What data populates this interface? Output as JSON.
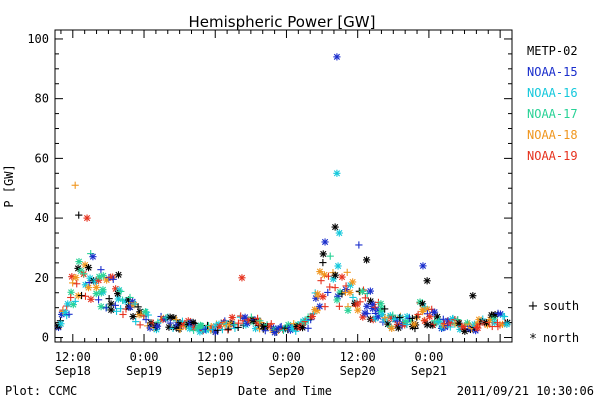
{
  "chart_data": {
    "type": "scatter",
    "title": "Hemispheric Power [GW]",
    "ylabel": "P [GW]",
    "xlabel": "Date and Time",
    "ylim": [
      0,
      100
    ],
    "y_ticks": [
      0,
      20,
      40,
      60,
      80,
      100
    ],
    "x_units": "hours since 2011-09-18 00:00 UT",
    "xlim": [
      9,
      86
    ],
    "x_ticks": [
      {
        "x": 12,
        "time": "12:00",
        "date": "Sep18"
      },
      {
        "x": 24,
        "time": "0:00",
        "date": "Sep19"
      },
      {
        "x": 36,
        "time": "12:00",
        "date": "Sep19"
      },
      {
        "x": 48,
        "time": "0:00",
        "date": "Sep20"
      },
      {
        "x": 60,
        "time": "12:00",
        "date": "Sep20"
      },
      {
        "x": 72,
        "time": "0:00",
        "date": "Sep21"
      }
    ],
    "legend_position": "right",
    "series": [
      {
        "name": "METP-02",
        "color": "#000000"
      },
      {
        "name": "NOAA-15",
        "color": "#1a2ecc"
      },
      {
        "name": "NOAA-16",
        "color": "#14c8dc"
      },
      {
        "name": "NOAA-17",
        "color": "#28d296"
      },
      {
        "name": "NOAA-18",
        "color": "#f0961e"
      },
      {
        "name": "NOAA-19",
        "color": "#e6321e"
      }
    ],
    "marker_key": {
      "plus": "south",
      "star": "north"
    },
    "notable_points": [
      {
        "series": "NOAA-18",
        "x": 12.4,
        "y": 51,
        "hemisphere": "south"
      },
      {
        "series": "NOAA-15",
        "x": 56.5,
        "y": 94,
        "hemisphere": "north"
      },
      {
        "series": "NOAA-16",
        "x": 56.5,
        "y": 55,
        "hemisphere": "north"
      },
      {
        "series": "METP-02",
        "x": 13.0,
        "y": 41,
        "hemisphere": "south"
      },
      {
        "series": "NOAA-19",
        "x": 14.4,
        "y": 40,
        "hemisphere": "north"
      },
      {
        "series": "METP-02",
        "x": 56.2,
        "y": 37,
        "hemisphere": "north"
      },
      {
        "series": "NOAA-16",
        "x": 56.9,
        "y": 35,
        "hemisphere": "north"
      },
      {
        "series": "NOAA-15",
        "x": 54.5,
        "y": 32,
        "hemisphere": "north"
      },
      {
        "series": "NOAA-15",
        "x": 60.2,
        "y": 31,
        "hemisphere": "south"
      },
      {
        "series": "METP-02",
        "x": 54.2,
        "y": 28,
        "hemisphere": "north"
      },
      {
        "series": "METP-02",
        "x": 61.5,
        "y": 26,
        "hemisphere": "north"
      },
      {
        "series": "NOAA-15",
        "x": 71.0,
        "y": 24,
        "hemisphere": "north"
      },
      {
        "series": "NOAA-19",
        "x": 40.5,
        "y": 20,
        "hemisphere": "north"
      },
      {
        "series": "METP-02",
        "x": 19.7,
        "y": 21,
        "hemisphere": "north"
      },
      {
        "series": "METP-02",
        "x": 71.7,
        "y": 19,
        "hemisphere": "north"
      },
      {
        "series": "METP-02",
        "x": 79.4,
        "y": 14,
        "hemisphere": "north"
      }
    ]
  },
  "footer": {
    "left": "Plot: CCMC",
    "right": "2011/09/21 10:30:06"
  }
}
